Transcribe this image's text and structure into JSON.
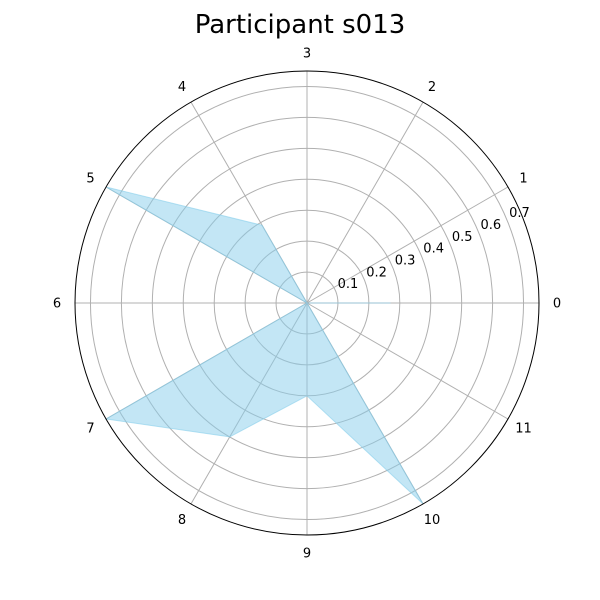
{
  "chart_data": {
    "type": "radar",
    "title": "Participant s013",
    "categories": [
      "0",
      "1",
      "2",
      "3",
      "4",
      "5",
      "6",
      "7",
      "8",
      "9",
      "10",
      "11"
    ],
    "series": [
      {
        "values": [
          0.27,
          0.0,
          0.0,
          0.0,
          0.29,
          0.75,
          0.0,
          0.75,
          0.5,
          0.3,
          0.75,
          0.0
        ],
        "fill_color": "#87ceeb",
        "fill_opacity": 0.5
      }
    ],
    "radial_ticks": [
      "0.1",
      "0.2",
      "0.3",
      "0.4",
      "0.5",
      "0.6",
      "0.7"
    ],
    "rlim": [
      0,
      0.75
    ],
    "grid": true,
    "grid_color": "#b0b0b0"
  }
}
